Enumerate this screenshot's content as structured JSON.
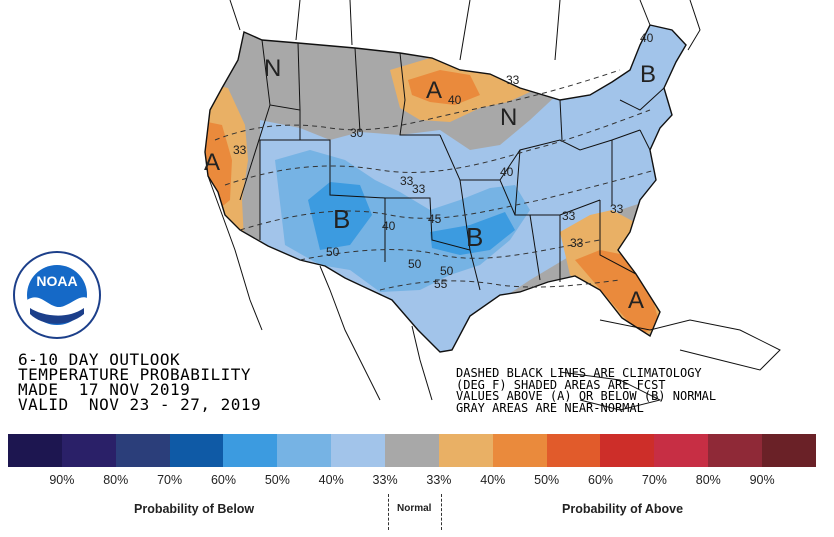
{
  "title_block": {
    "line1": "6-10 DAY OUTLOOK",
    "line2": "TEMPERATURE PROBABILITY",
    "line3": "MADE  17 NOV 2019",
    "line4": "VALID  NOV 23 - 27, 2019"
  },
  "note_block": {
    "line1": "DASHED BLACK LINES ARE CLIMATOLOGY",
    "line2": "(DEG F) SHADED AREAS ARE FCST",
    "line3": "VALUES ABOVE (A) OR BELOW (B) NORMAL",
    "line4": "GRAY AREAS ARE NEAR-NORMAL"
  },
  "logo": {
    "text": "NOAA",
    "icon": "noaa-logo-icon"
  },
  "legend": {
    "colors": [
      "#1d1650",
      "#2a2068",
      "#2b3e7a",
      "#0f5aa6",
      "#3c9be0",
      "#76b3e4",
      "#a2c4ea",
      "#a8a8a8",
      "#e9b065",
      "#ea8a3c",
      "#e15b2b",
      "#cd2e29",
      "#c72e44",
      "#8f2937",
      "#6a2127"
    ],
    "ticks": [
      "90%",
      "80%",
      "70%",
      "60%",
      "50%",
      "40%",
      "33%",
      "33%",
      "40%",
      "50%",
      "60%",
      "70%",
      "80%",
      "90%"
    ],
    "below_caption": "Probability of Below",
    "normal_caption": "Normal",
    "above_caption": "Probability of Above"
  },
  "map_labels": {
    "letters": [
      "N",
      "A",
      "N",
      "B",
      "A",
      "B",
      "B",
      "A"
    ],
    "contours": [
      "40",
      "33",
      "33",
      "40",
      "30",
      "33",
      "40",
      "45",
      "33",
      "50",
      "50",
      "40",
      "33",
      "50",
      "55",
      "33",
      "33"
    ]
  }
}
